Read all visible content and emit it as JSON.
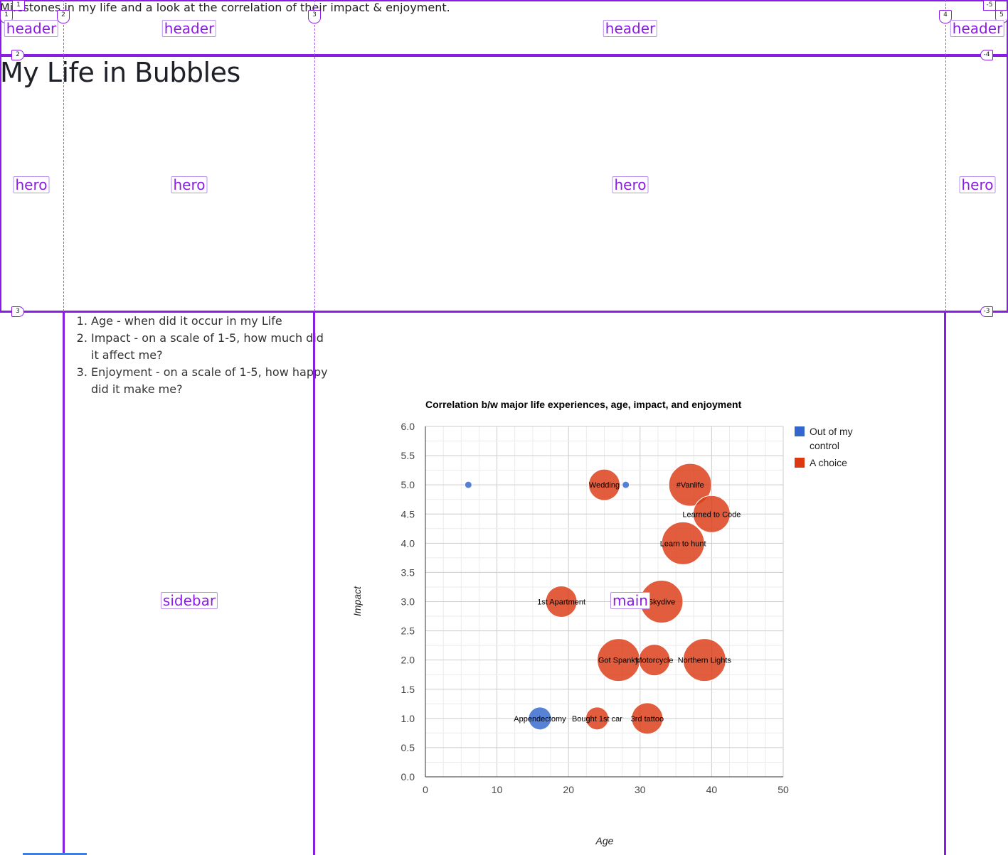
{
  "intro_text": "Milestones in my life and a look at the correlation of their impact & enjoyment.",
  "page_title": "My Life in Bubbles",
  "criteria": [
    "Age - when did it occur in my Life",
    "Impact - on a scale of 1-5, how much did it affect me?",
    "Enjoyment - on a scale of 1-5, how happy did it make me?"
  ],
  "grid_overlay": {
    "areas": [
      "header",
      "header",
      "header",
      "header",
      "hero",
      "hero",
      "hero",
      "hero",
      "sidebar",
      "main"
    ],
    "column_line_numbers": [
      "1",
      "2",
      "3",
      "4",
      "5"
    ],
    "negative_column_numbers": [
      "-5"
    ],
    "row_line_numbers": [
      "1",
      "2",
      "3"
    ],
    "negative_row_numbers": [
      "-4",
      "-3"
    ],
    "line_color": "#8a1ce5"
  },
  "chart_data": {
    "type": "scatter",
    "title": "Correlation b/w major life experiences, age, impact, and enjoyment",
    "xlabel": "Age",
    "ylabel": "Impact",
    "xlim": [
      0,
      50
    ],
    "ylim": [
      0,
      6
    ],
    "x_ticks": [
      "0",
      "10",
      "20",
      "30",
      "40",
      "50"
    ],
    "y_ticks": [
      "0.0",
      "0.5",
      "1.0",
      "1.5",
      "2.0",
      "2.5",
      "3.0",
      "3.5",
      "4.0",
      "4.5",
      "5.0",
      "5.5",
      "6.0"
    ],
    "grid": true,
    "legend_position": "right",
    "series": [
      {
        "name": "Out of my control",
        "color": "#3366cc"
      },
      {
        "name": "A choice",
        "color": "#dc3912"
      }
    ],
    "points": [
      {
        "label": "",
        "x": 6,
        "y": 5,
        "enjoyment": 1,
        "series": 0
      },
      {
        "label": "",
        "x": 28,
        "y": 5,
        "enjoyment": 1,
        "series": 0
      },
      {
        "label": "Appendectomy",
        "x": 16,
        "y": 1,
        "enjoyment": 2,
        "series": 0
      },
      {
        "label": "Wedding",
        "x": 25,
        "y": 5,
        "enjoyment": 3,
        "series": 1
      },
      {
        "label": "#Vanlife",
        "x": 37,
        "y": 5,
        "enjoyment": 5,
        "series": 1
      },
      {
        "label": "Learned to Code",
        "x": 40,
        "y": 4.5,
        "enjoyment": 4,
        "series": 1
      },
      {
        "label": "Learn to hunt",
        "x": 36,
        "y": 4,
        "enjoyment": 5,
        "series": 1
      },
      {
        "label": "1st Apartment",
        "x": 19,
        "y": 3,
        "enjoyment": 3,
        "series": 1
      },
      {
        "label": "Skydive",
        "x": 33,
        "y": 3,
        "enjoyment": 5,
        "series": 1
      },
      {
        "label": "Got Spanky",
        "x": 27,
        "y": 2,
        "enjoyment": 5,
        "series": 1
      },
      {
        "label": "Motorcycle",
        "x": 32,
        "y": 2,
        "enjoyment": 3,
        "series": 1
      },
      {
        "label": "Northern Lights",
        "x": 39,
        "y": 2,
        "enjoyment": 5,
        "series": 1
      },
      {
        "label": "Bought 1st car",
        "x": 24,
        "y": 1,
        "enjoyment": 2,
        "series": 1
      },
      {
        "label": "3rd tattoo",
        "x": 31,
        "y": 1,
        "enjoyment": 3,
        "series": 1
      }
    ]
  }
}
